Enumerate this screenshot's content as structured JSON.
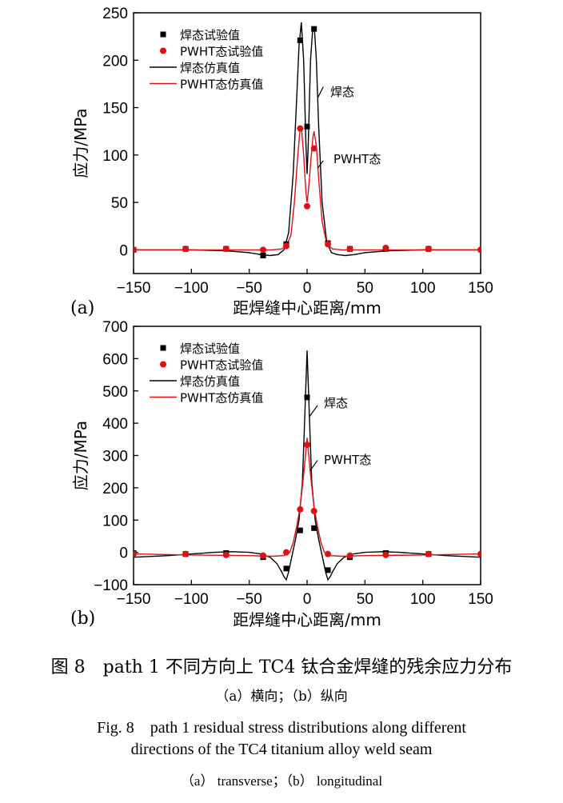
{
  "chart_data": [
    {
      "type": "line",
      "panel_label": "(a)",
      "xlabel": "距焊缝中心距离/mm",
      "ylabel": "应力/MPa",
      "xlim": [
        -150,
        150
      ],
      "ylim": [
        -25,
        250
      ],
      "xticks": [
        -150,
        -100,
        -50,
        0,
        50,
        100,
        150
      ],
      "yticks": [
        0,
        50,
        100,
        150,
        200,
        250
      ],
      "legend_position": "top-left",
      "annotations": [
        {
          "text": "焊态",
          "x": 7,
          "y": 160
        },
        {
          "text": "PWHT态",
          "x": 10,
          "y": 85
        }
      ],
      "series": [
        {
          "name": "焊态试验值",
          "kind": "scatter",
          "marker": "square",
          "color": "#000000",
          "x": [
            -150,
            -105,
            -70,
            -38,
            -18,
            -6,
            0,
            6,
            18,
            37,
            68,
            105
          ],
          "y": [
            0,
            1,
            1,
            -6,
            6,
            221,
            130,
            233,
            7,
            1,
            1,
            1
          ]
        },
        {
          "name": "PWHT态试验值",
          "kind": "scatter",
          "marker": "circle",
          "color": "#e01010",
          "x": [
            -150,
            -105,
            -70,
            -38,
            -18,
            -6,
            0,
            6,
            18,
            37,
            68,
            105,
            150
          ],
          "y": [
            0,
            1,
            1,
            0,
            4,
            128,
            46,
            107,
            6,
            1,
            2,
            1,
            0
          ]
        },
        {
          "name": "焊态仿真值",
          "kind": "line",
          "color": "#000000",
          "x": [
            -150,
            -120,
            -100,
            -70,
            -50,
            -40,
            -32,
            -25,
            -20,
            -16,
            -12,
            -9,
            -7,
            -5,
            -3,
            -1,
            0,
            1,
            3,
            5,
            6.5,
            8,
            10,
            13,
            17,
            21,
            26,
            33,
            41,
            50,
            70,
            100,
            120,
            150
          ],
          "y": [
            0,
            0,
            0,
            -1,
            -3,
            -5,
            -6,
            -5,
            0,
            18,
            80,
            160,
            215,
            240,
            200,
            110,
            80,
            110,
            200,
            235,
            230,
            200,
            130,
            50,
            8,
            -3,
            -5,
            -6,
            -5,
            -3,
            -1,
            0,
            0,
            0
          ]
        },
        {
          "name": "PWHT态仿真值",
          "kind": "line",
          "color": "#e01010",
          "x": [
            -150,
            -100,
            -50,
            -30,
            -22,
            -18,
            -14,
            -11,
            -8,
            -6,
            -5,
            -3,
            -1,
            0,
            1,
            3,
            5,
            6,
            8,
            10,
            13,
            17,
            22,
            30,
            50,
            100,
            150
          ],
          "y": [
            0,
            0,
            0,
            0,
            1,
            4,
            15,
            50,
            100,
            128,
            130,
            100,
            60,
            50,
            60,
            90,
            118,
            125,
            110,
            75,
            30,
            6,
            1,
            0,
            0,
            0,
            0
          ]
        }
      ]
    },
    {
      "type": "line",
      "panel_label": "(b)",
      "xlabel": "距焊缝中心距离/mm",
      "ylabel": "应力/MPa",
      "xlim": [
        -150,
        150
      ],
      "ylim": [
        -100,
        700
      ],
      "xticks": [
        -150,
        -100,
        -50,
        0,
        50,
        100,
        150
      ],
      "yticks": [
        -100,
        0,
        100,
        200,
        300,
        400,
        500,
        600,
        700
      ],
      "legend_position": "top-left",
      "annotations": [
        {
          "text": "焊态",
          "x": 8,
          "y": 480
        },
        {
          "text": "PWHT态",
          "x": 8,
          "y": 270
        }
      ],
      "series": [
        {
          "name": "焊态试验值",
          "kind": "scatter",
          "marker": "square",
          "color": "#000000",
          "x": [
            -150,
            -105,
            -70,
            -38,
            -18,
            -6,
            0,
            6,
            18,
            37,
            68,
            105
          ],
          "y": [
            -2,
            -5,
            -2,
            -15,
            -50,
            68,
            480,
            75,
            -55,
            -15,
            -2,
            -5
          ]
        },
        {
          "name": "PWHT态试验值",
          "kind": "scatter",
          "marker": "circle",
          "color": "#e01010",
          "x": [
            -150,
            -105,
            -70,
            -38,
            -18,
            -6,
            0,
            6,
            18,
            37,
            68,
            105,
            150
          ],
          "y": [
            -5,
            -5,
            -8,
            -10,
            0,
            133,
            333,
            128,
            -5,
            -10,
            -8,
            -5,
            -5
          ]
        },
        {
          "name": "焊态仿真值",
          "kind": "line",
          "color": "#000000",
          "x": [
            -150,
            -120,
            -100,
            -80,
            -65,
            -50,
            -40,
            -32,
            -26,
            -22,
            -20,
            -18,
            -16,
            -13,
            -10,
            -7,
            -4,
            -2,
            0,
            2,
            4,
            7,
            10,
            13,
            16,
            18,
            20,
            22,
            26,
            32,
            40,
            50,
            65,
            80,
            100,
            120,
            150
          ],
          "y": [
            -15,
            -10,
            -5,
            0,
            2,
            0,
            -5,
            -15,
            -35,
            -60,
            -75,
            -85,
            -60,
            -10,
            40,
            100,
            220,
            420,
            625,
            420,
            220,
            100,
            40,
            -10,
            -60,
            -85,
            -75,
            -60,
            -35,
            -15,
            -5,
            0,
            2,
            0,
            -5,
            -10,
            -15
          ]
        },
        {
          "name": "PWHT态仿真值",
          "kind": "line",
          "color": "#e01010",
          "x": [
            -150,
            -100,
            -50,
            -30,
            -20,
            -15,
            -12,
            -9,
            -6,
            -3,
            0,
            3,
            6,
            9,
            12,
            15,
            20,
            30,
            50,
            100,
            150
          ],
          "y": [
            -5,
            -8,
            -10,
            -12,
            -10,
            0,
            30,
            80,
            140,
            240,
            355,
            240,
            140,
            80,
            30,
            0,
            -10,
            -12,
            -10,
            -8,
            -5
          ]
        }
      ]
    }
  ],
  "caption": {
    "zh_title": "图 8　path 1 不同方向上 TC4 钛合金焊缝的残余应力分布",
    "zh_sub": "（a）横向；（b）纵向",
    "en_title_line1": "Fig. 8　path 1 residual stress distributions along different",
    "en_title_line2": "directions of the TC4 titanium alloy weld seam",
    "en_sub": "（a） transverse；（b） longitudinal"
  }
}
